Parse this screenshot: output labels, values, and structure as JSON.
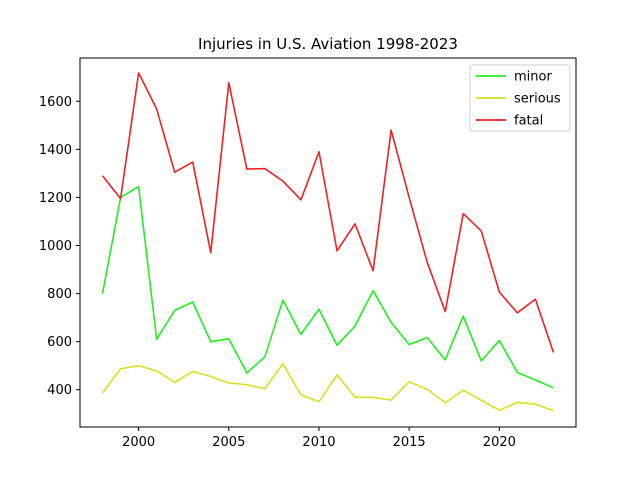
{
  "chart_data": {
    "type": "line",
    "title": "Injuries in U.S. Aviation 1998-2023",
    "xlabel": "",
    "ylabel": "",
    "x": [
      1998,
      1999,
      2000,
      2001,
      2002,
      2003,
      2004,
      2005,
      2006,
      2007,
      2008,
      2009,
      2010,
      2011,
      2012,
      2013,
      2014,
      2015,
      2016,
      2017,
      2018,
      2019,
      2020,
      2021,
      2022,
      2023
    ],
    "xlim": [
      1996.75,
      2024.25
    ],
    "ylim": [
      245,
      1780
    ],
    "xticks": [
      2000,
      2005,
      2010,
      2015,
      2020
    ],
    "yticks": [
      400,
      600,
      800,
      1000,
      1200,
      1400,
      1600
    ],
    "grid": false,
    "legend_position": "top-right",
    "series": [
      {
        "name": "minor",
        "color": "#22ee22",
        "values": [
          800,
          1200,
          1245,
          610,
          730,
          765,
          600,
          612,
          470,
          537,
          773,
          630,
          735,
          585,
          665,
          812,
          680,
          588,
          617,
          524,
          706,
          520,
          605,
          472,
          440,
          408
        ]
      },
      {
        "name": "serious",
        "color": "#dddd22",
        "values": [
          387,
          487,
          500,
          478,
          431,
          476,
          455,
          428,
          421,
          404,
          508,
          378,
          350,
          462,
          369,
          368,
          357,
          433,
          402,
          346,
          398,
          356,
          315,
          347,
          340,
          313
        ]
      },
      {
        "name": "fatal",
        "color": "#ee2222",
        "values": [
          1290,
          1195,
          1718,
          1568,
          1305,
          1347,
          970,
          1677,
          1318,
          1320,
          1268,
          1190,
          1390,
          978,
          1090,
          895,
          1480,
          1200,
          930,
          725,
          1133,
          1060,
          806,
          720,
          777,
          555
        ]
      }
    ]
  }
}
